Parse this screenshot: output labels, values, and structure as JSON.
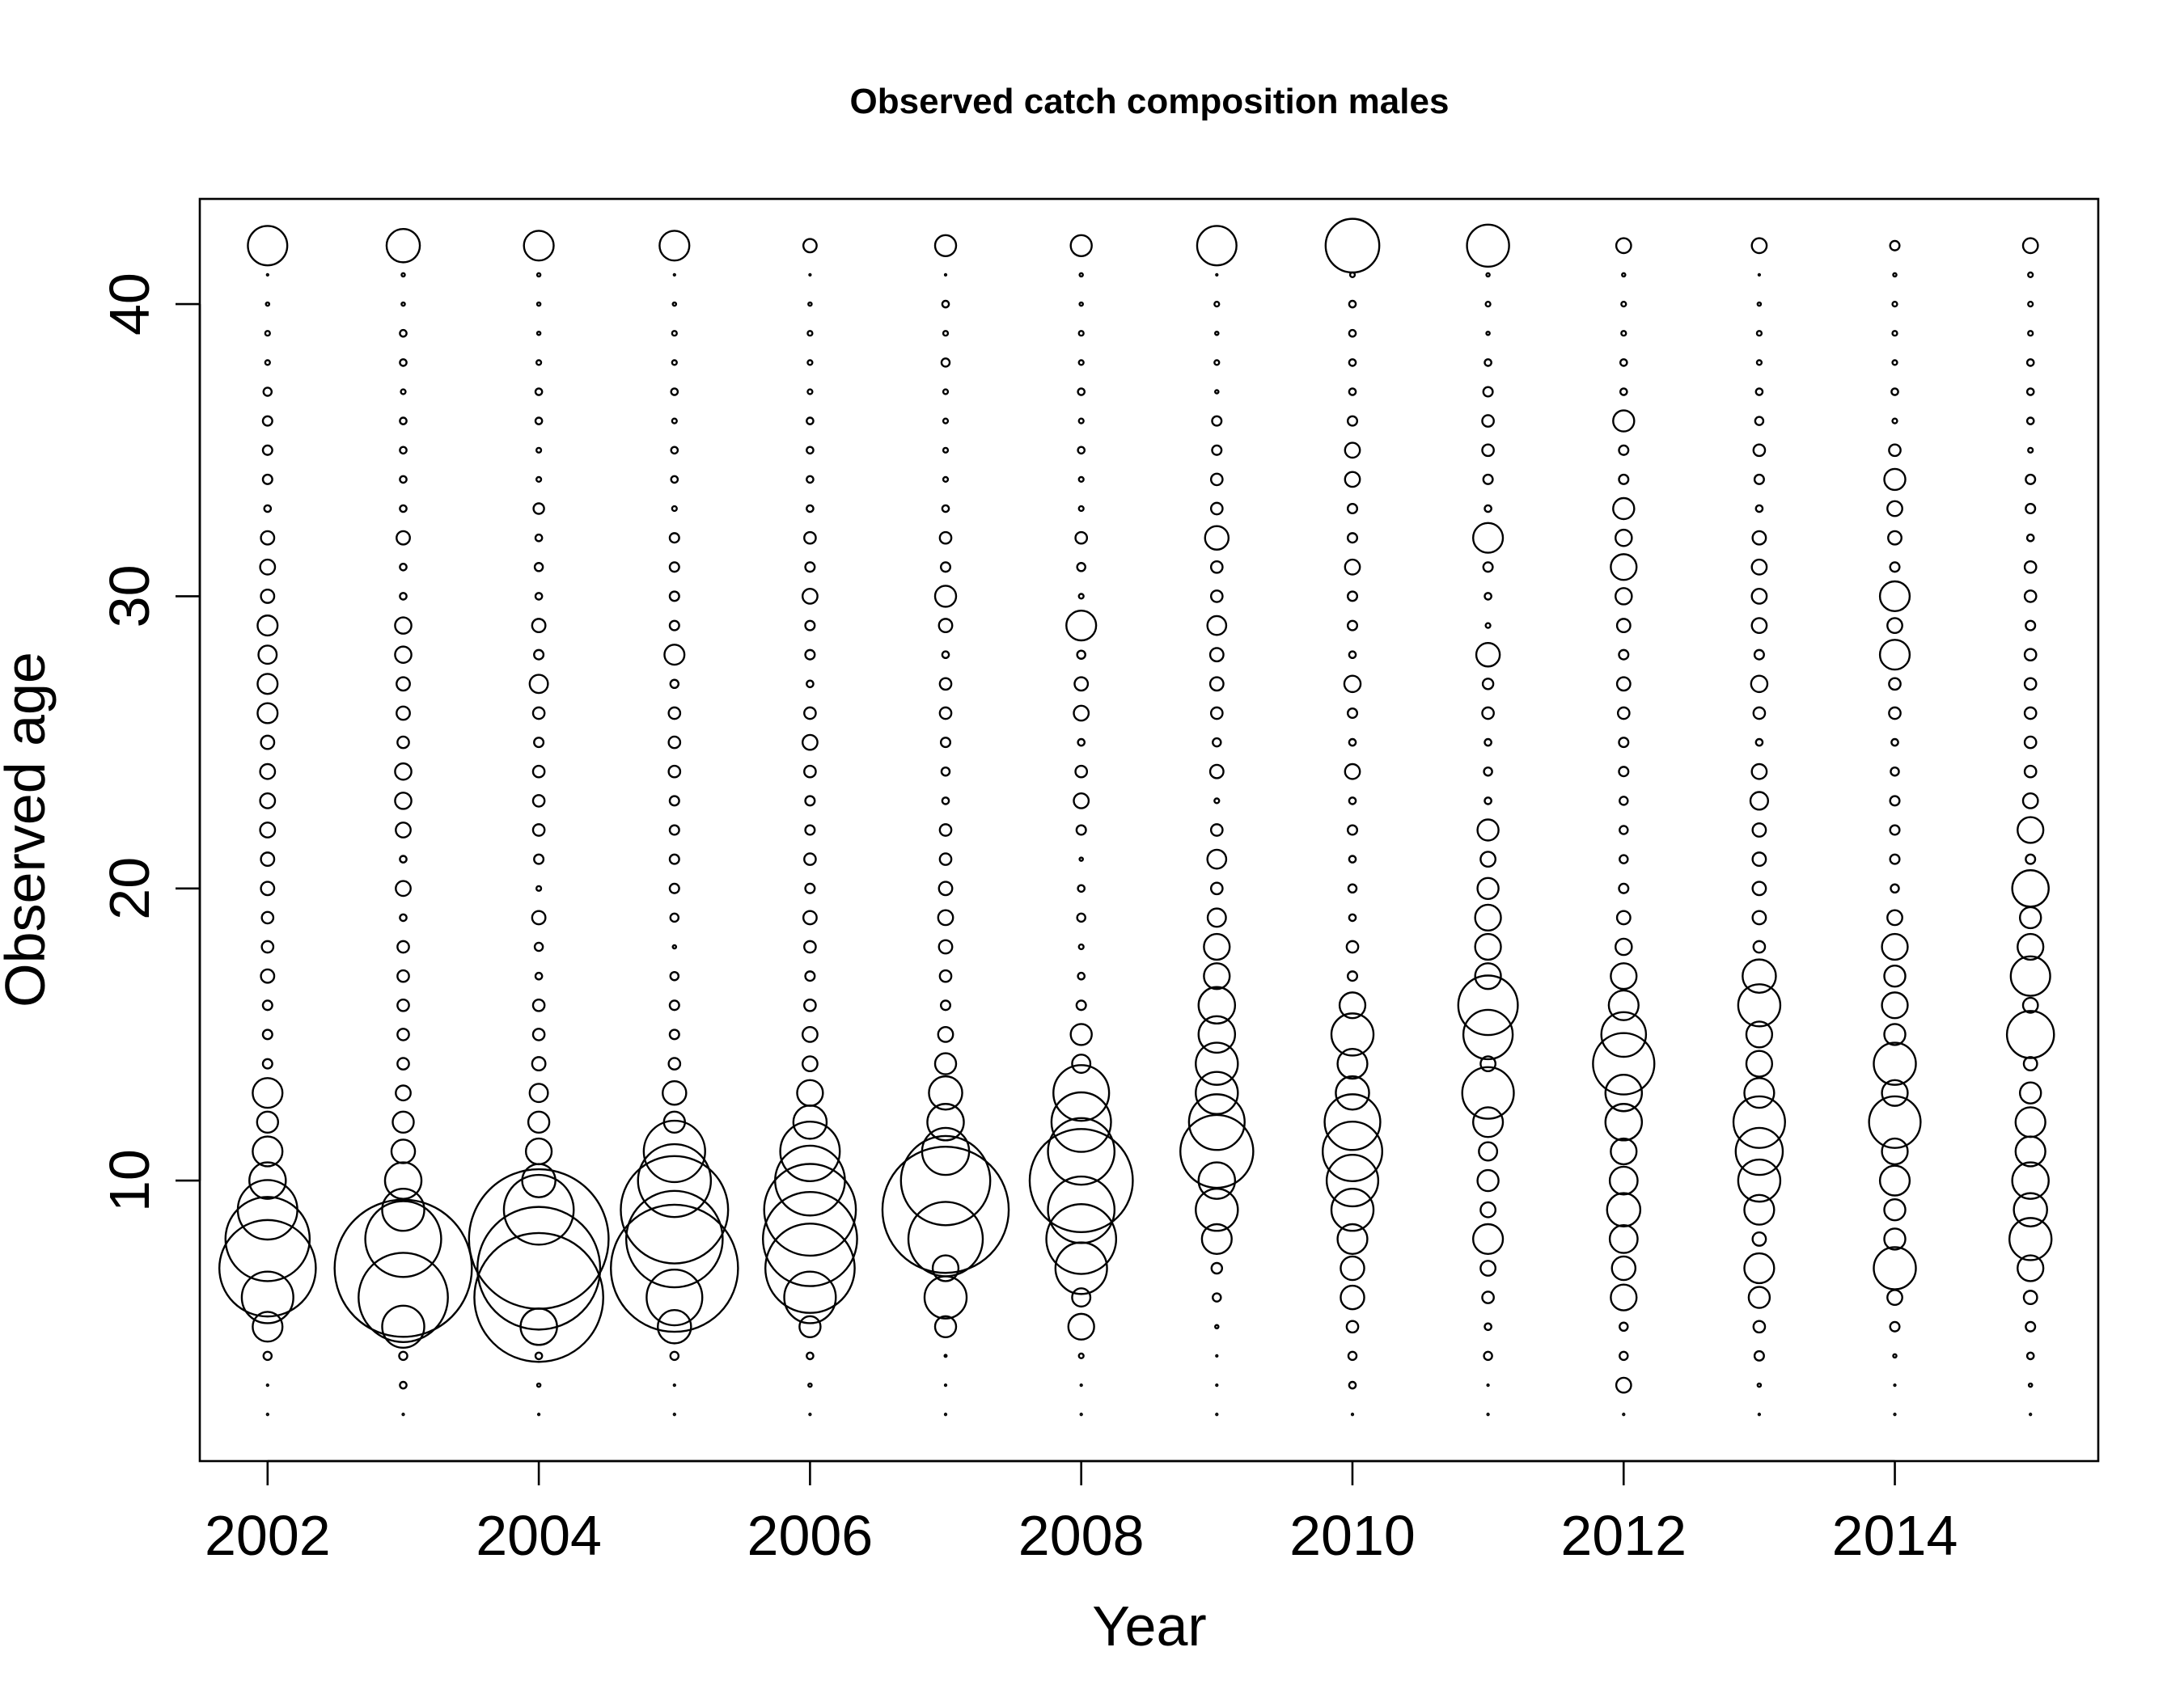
{
  "chart_data": {
    "type": "scatter",
    "subtype": "bubble",
    "title": "Observed catch composition males",
    "xlabel": "Year",
    "ylabel": "Observed age",
    "xlim": [
      2001.5,
      2015.5
    ],
    "ylim": [
      0.4,
      43.6
    ],
    "x_ticks": [
      2002,
      2004,
      2006,
      2008,
      2010,
      2012,
      2014
    ],
    "y_ticks": [
      10,
      20,
      30,
      40
    ],
    "grid": false,
    "legend": "none",
    "bubble_value_note": "relative proportion (max = 1)",
    "years": [
      2002,
      2003,
      2004,
      2005,
      2006,
      2007,
      2008,
      2009,
      2010,
      2011,
      2012,
      2013,
      2014,
      2015
    ],
    "ages": [
      2,
      3,
      4,
      5,
      6,
      7,
      8,
      9,
      10,
      11,
      12,
      13,
      14,
      15,
      16,
      17,
      18,
      19,
      20,
      21,
      22,
      23,
      24,
      25,
      26,
      27,
      28,
      29,
      30,
      31,
      32,
      33,
      34,
      35,
      36,
      37,
      38,
      39,
      40,
      41,
      42
    ],
    "series": [
      {
        "year": 2002,
        "values": [
          0.0001,
          0.0001,
          0.003,
          0.04,
          0.12,
          0.42,
          0.32,
          0.16,
          0.06,
          0.04,
          0.02,
          0.04,
          0.004,
          0.004,
          0.004,
          0.008,
          0.006,
          0.006,
          0.008,
          0.008,
          0.01,
          0.01,
          0.01,
          0.008,
          0.018,
          0.018,
          0.015,
          0.018,
          0.008,
          0.01,
          0.008,
          0.002,
          0.004,
          0.004,
          0.004,
          0.003,
          0.001,
          0.001,
          0.0005,
          0.0001,
          0.07
        ]
      },
      {
        "year": 2003,
        "values": [
          0.0001,
          0.002,
          0.003,
          0.08,
          0.36,
          0.85,
          0.26,
          0.08,
          0.06,
          0.025,
          0.02,
          0.01,
          0.006,
          0.006,
          0.006,
          0.006,
          0.006,
          0.002,
          0.01,
          0.002,
          0.01,
          0.012,
          0.012,
          0.006,
          0.008,
          0.008,
          0.012,
          0.012,
          0.002,
          0.002,
          0.008,
          0.002,
          0.002,
          0.002,
          0.002,
          0.001,
          0.002,
          0.002,
          0.0005,
          0.0005,
          0.05
        ]
      },
      {
        "year": 2004,
        "values": [
          0.0001,
          0.0005,
          0.002,
          0.06,
          0.75,
          0.68,
          0.88,
          0.22,
          0.05,
          0.03,
          0.02,
          0.015,
          0.008,
          0.006,
          0.006,
          0.002,
          0.003,
          0.008,
          0.001,
          0.004,
          0.006,
          0.006,
          0.006,
          0.004,
          0.006,
          0.015,
          0.004,
          0.008,
          0.002,
          0.003,
          0.002,
          0.005,
          0.001,
          0.001,
          0.002,
          0.002,
          0.001,
          0.0005,
          0.0005,
          0.0005,
          0.04
        ]
      },
      {
        "year": 2005,
        "values": [
          0.0001,
          0.0001,
          0.003,
          0.05,
          0.14,
          0.73,
          0.42,
          0.52,
          0.24,
          0.17,
          0.02,
          0.025,
          0.006,
          0.004,
          0.004,
          0.003,
          0.0005,
          0.003,
          0.004,
          0.004,
          0.004,
          0.004,
          0.006,
          0.006,
          0.006,
          0.003,
          0.018,
          0.004,
          0.004,
          0.004,
          0.004,
          0.001,
          0.002,
          0.002,
          0.001,
          0.002,
          0.001,
          0.001,
          0.0005,
          0.0001,
          0.04
        ]
      },
      {
        "year": 2006,
        "values": [
          0.0001,
          0.0005,
          0.002,
          0.02,
          0.12,
          0.36,
          0.4,
          0.38,
          0.22,
          0.16,
          0.05,
          0.03,
          0.01,
          0.01,
          0.006,
          0.004,
          0.006,
          0.008,
          0.004,
          0.006,
          0.004,
          0.004,
          0.006,
          0.01,
          0.006,
          0.002,
          0.004,
          0.004,
          0.01,
          0.004,
          0.006,
          0.002,
          0.002,
          0.002,
          0.002,
          0.001,
          0.001,
          0.001,
          0.0005,
          0.0001,
          0.008
        ]
      },
      {
        "year": 2007,
        "values": [
          0.0001,
          0.0001,
          0.0002,
          0.02,
          0.08,
          0.03,
          0.25,
          0.72,
          0.36,
          0.1,
          0.06,
          0.05,
          0.02,
          0.01,
          0.004,
          0.006,
          0.008,
          0.01,
          0.008,
          0.006,
          0.006,
          0.002,
          0.003,
          0.004,
          0.006,
          0.006,
          0.002,
          0.008,
          0.02,
          0.004,
          0.006,
          0.002,
          0.001,
          0.001,
          0.001,
          0.001,
          0.003,
          0.001,
          0.002,
          0.0001,
          0.02
        ]
      },
      {
        "year": 2008,
        "values": [
          0.0001,
          0.0001,
          0.001,
          0.03,
          0.015,
          0.12,
          0.22,
          0.2,
          0.48,
          0.2,
          0.16,
          0.14,
          0.015,
          0.02,
          0.004,
          0.002,
          0.001,
          0.003,
          0.002,
          0.0005,
          0.004,
          0.01,
          0.006,
          0.002,
          0.01,
          0.008,
          0.003,
          0.04,
          0.001,
          0.003,
          0.006,
          0.001,
          0.001,
          0.002,
          0.001,
          0.002,
          0.001,
          0.001,
          0.0005,
          0.0005,
          0.02
        ]
      },
      {
        "year": 2009,
        "values": [
          0.0001,
          0.0001,
          0.0001,
          0.0005,
          0.003,
          0.005,
          0.04,
          0.08,
          0.06,
          0.24,
          0.14,
          0.08,
          0.08,
          0.06,
          0.06,
          0.03,
          0.03,
          0.015,
          0.006,
          0.016,
          0.006,
          0.001,
          0.008,
          0.003,
          0.006,
          0.008,
          0.008,
          0.016,
          0.006,
          0.006,
          0.025,
          0.006,
          0.006,
          0.004,
          0.004,
          0.0005,
          0.001,
          0.0005,
          0.001,
          0.0001,
          0.07
        ]
      },
      {
        "year": 2010,
        "values": [
          0.0001,
          0.002,
          0.003,
          0.006,
          0.025,
          0.025,
          0.04,
          0.08,
          0.12,
          0.16,
          0.14,
          0.05,
          0.04,
          0.08,
          0.03,
          0.004,
          0.006,
          0.002,
          0.003,
          0.002,
          0.004,
          0.002,
          0.01,
          0.002,
          0.004,
          0.012,
          0.002,
          0.004,
          0.004,
          0.01,
          0.004,
          0.004,
          0.01,
          0.01,
          0.004,
          0.002,
          0.002,
          0.002,
          0.002,
          0.001,
          0.13
        ]
      },
      {
        "year": 2011,
        "values": [
          0.0001,
          0.0001,
          0.003,
          0.002,
          0.006,
          0.01,
          0.04,
          0.01,
          0.02,
          0.015,
          0.04,
          0.12,
          0.01,
          0.11,
          0.16,
          0.03,
          0.03,
          0.03,
          0.02,
          0.01,
          0.02,
          0.002,
          0.003,
          0.002,
          0.006,
          0.005,
          0.025,
          0.001,
          0.002,
          0.004,
          0.04,
          0.002,
          0.004,
          0.006,
          0.006,
          0.004,
          0.002,
          0.0005,
          0.001,
          0.0005,
          0.08
        ]
      },
      {
        "year": 2012,
        "values": [
          0.0001,
          0.01,
          0.003,
          0.003,
          0.03,
          0.025,
          0.035,
          0.05,
          0.035,
          0.03,
          0.06,
          0.06,
          0.17,
          0.09,
          0.04,
          0.03,
          0.012,
          0.008,
          0.004,
          0.003,
          0.003,
          0.003,
          0.004,
          0.004,
          0.006,
          0.008,
          0.004,
          0.008,
          0.012,
          0.03,
          0.012,
          0.02,
          0.004,
          0.004,
          0.02,
          0.002,
          0.002,
          0.001,
          0.001,
          0.0005,
          0.01
        ]
      },
      {
        "year": 2013,
        "values": [
          0.0001,
          0.0005,
          0.004,
          0.006,
          0.02,
          0.04,
          0.008,
          0.04,
          0.08,
          0.1,
          0.12,
          0.04,
          0.03,
          0.03,
          0.08,
          0.05,
          0.006,
          0.008,
          0.008,
          0.008,
          0.008,
          0.014,
          0.01,
          0.002,
          0.006,
          0.012,
          0.004,
          0.01,
          0.01,
          0.01,
          0.008,
          0.002,
          0.004,
          0.006,
          0.003,
          0.002,
          0.001,
          0.001,
          0.0005,
          0.0001,
          0.01
        ]
      },
      {
        "year": 2014,
        "values": [
          0.0001,
          0.0001,
          0.0005,
          0.004,
          0.01,
          0.08,
          0.02,
          0.02,
          0.04,
          0.03,
          0.12,
          0.03,
          0.08,
          0.02,
          0.03,
          0.02,
          0.03,
          0.01,
          0.003,
          0.004,
          0.004,
          0.004,
          0.003,
          0.002,
          0.006,
          0.006,
          0.04,
          0.01,
          0.04,
          0.004,
          0.008,
          0.01,
          0.02,
          0.006,
          0.001,
          0.002,
          0.001,
          0.001,
          0.001,
          0.0005,
          0.004
        ]
      },
      {
        "year": 2015,
        "values": [
          0.0001,
          0.0005,
          0.002,
          0.004,
          0.008,
          0.03,
          0.08,
          0.05,
          0.06,
          0.04,
          0.04,
          0.02,
          0.008,
          0.1,
          0.01,
          0.07,
          0.03,
          0.02,
          0.06,
          0.004,
          0.03,
          0.01,
          0.006,
          0.006,
          0.006,
          0.006,
          0.006,
          0.004,
          0.006,
          0.006,
          0.002,
          0.004,
          0.004,
          0.001,
          0.002,
          0.002,
          0.002,
          0.001,
          0.001,
          0.001,
          0.01
        ]
      }
    ]
  }
}
